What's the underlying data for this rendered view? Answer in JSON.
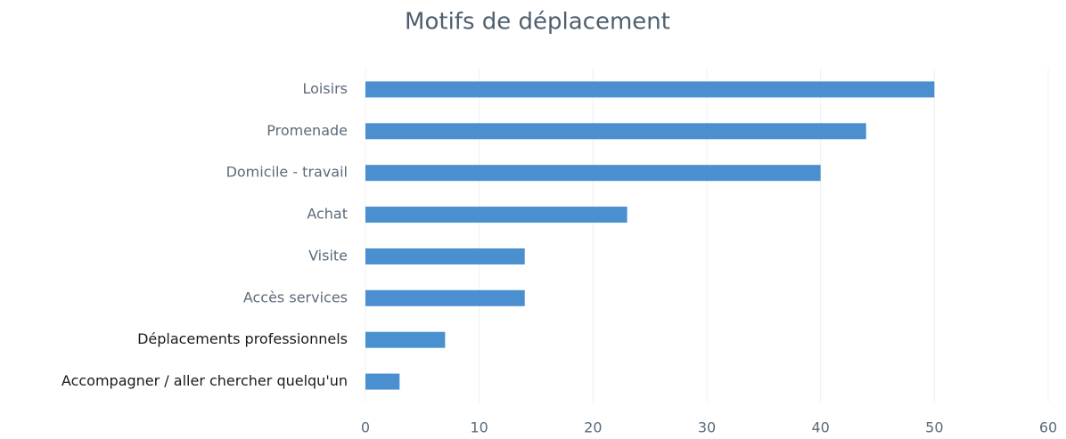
{
  "chart_data": {
    "type": "bar",
    "title": "Motifs de déplacement",
    "categories": [
      "Loisirs",
      "Promenade",
      "Domicile - travail",
      "Achat",
      "Visite",
      "Accès services",
      "Déplacements professionnels",
      "Accompagner / aller chercher quelqu'un"
    ],
    "values": [
      50,
      44,
      40,
      23,
      14,
      14,
      7,
      3
    ],
    "color": "#4a8fcf",
    "xlim": [
      0,
      60
    ],
    "xticks": [
      0,
      10,
      20,
      30,
      40,
      50,
      60
    ],
    "grid": true
  }
}
